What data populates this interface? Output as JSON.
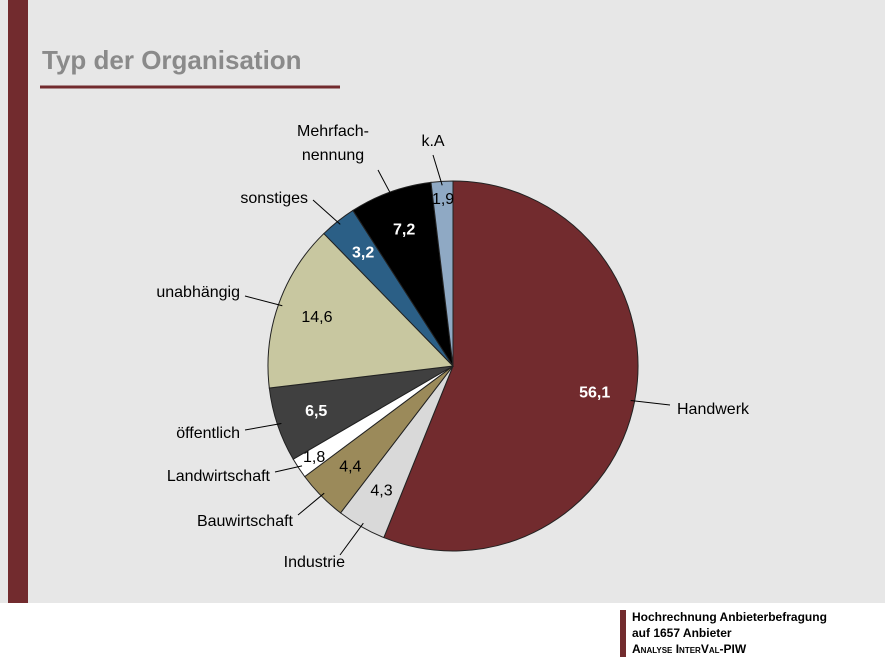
{
  "chart_data": {
    "type": "pie",
    "title": "Typ der Organisation",
    "categories": [
      "Handwerk",
      "Industrie",
      "Bauwirtschaft",
      "Landwirtschaft",
      "öffentlich",
      "unabhängig",
      "sonstiges",
      "Mehrfach-\nnennung",
      "k.A"
    ],
    "values": [
      56.1,
      4.3,
      4.4,
      1.8,
      6.5,
      14.6,
      3.2,
      7.2,
      1.9
    ],
    "value_labels": [
      "56,1",
      "4,3",
      "4,4",
      "1,8",
      "6,5",
      "14,6",
      "3,2",
      "7,2",
      "1,9"
    ],
    "colors": [
      "#722b2e",
      "#d9d9d9",
      "#9b8a5a",
      "#ffffff",
      "#404040",
      "#c8c7a0",
      "#2b5f86",
      "#000000",
      "#8fa9c4"
    ],
    "footer": [
      "Hochrechnung Anbieterbefragung",
      "auf 1657 Anbieter",
      "Analyse InterVal-PIW"
    ]
  }
}
